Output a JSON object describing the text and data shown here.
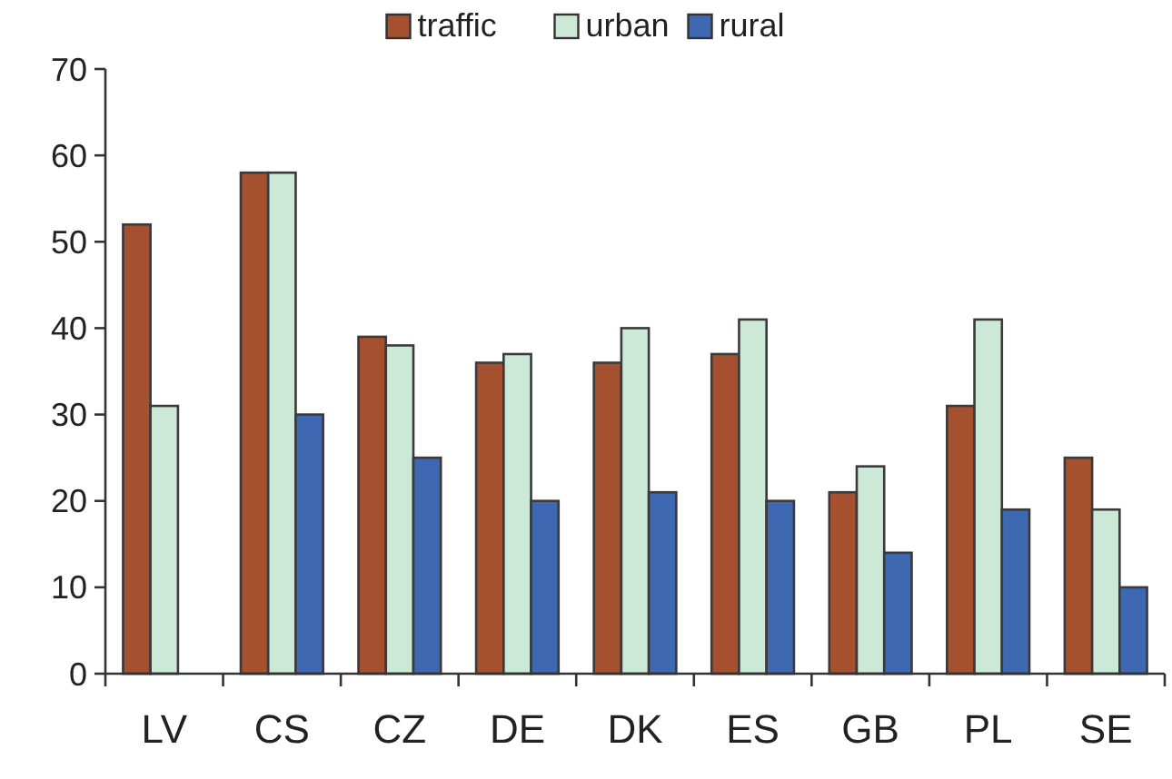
{
  "chart_data": {
    "type": "bar",
    "categories": [
      "LV",
      "CS",
      "CZ",
      "DE",
      "DK",
      "ES",
      "GB",
      "PL",
      "SE"
    ],
    "series": [
      {
        "name": "traffic",
        "color": "#a5512f",
        "values": [
          52,
          58,
          39,
          36,
          36,
          37,
          21,
          31,
          25
        ]
      },
      {
        "name": "urban",
        "color": "#cce8d6",
        "values": [
          31,
          58,
          38,
          37,
          40,
          41,
          24,
          41,
          19
        ]
      },
      {
        "name": "rural",
        "color": "#3e68b2",
        "values": [
          null,
          30,
          25,
          20,
          21,
          20,
          14,
          19,
          10
        ]
      }
    ],
    "ylim": [
      0,
      70
    ],
    "yticks": [
      0,
      10,
      20,
      30,
      40,
      50,
      60,
      70
    ],
    "grid": false,
    "legend": "top"
  }
}
